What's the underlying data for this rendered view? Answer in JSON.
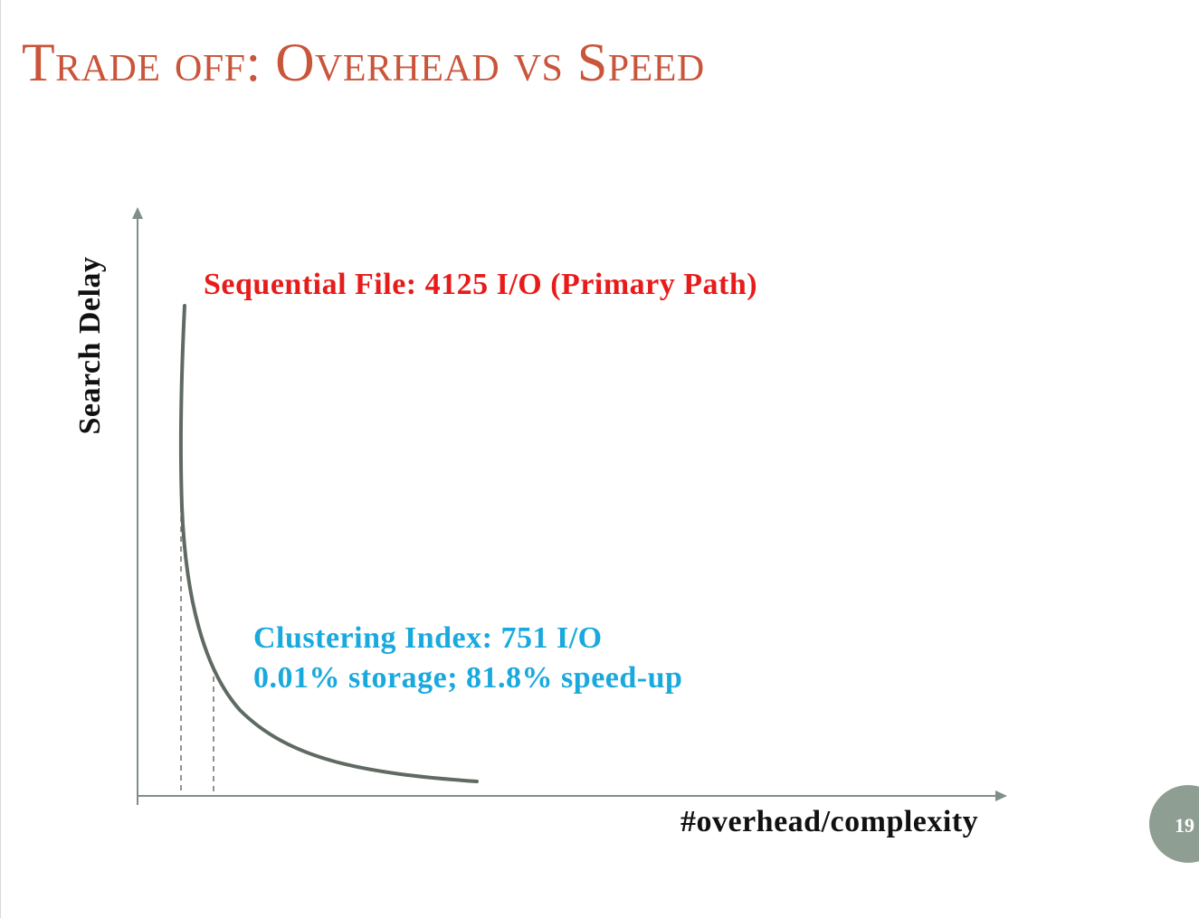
{
  "slide": {
    "title": "Trade off: Overhead vs Speed",
    "page_number": "19"
  },
  "diagram": {
    "y_axis_label": "Search Delay",
    "x_axis_label": "#overhead/complexity",
    "annotations": {
      "sequential": "Sequential File: 4125 I/O (Primary Path)",
      "clustering_line1": "Clustering Index: 751 I/O",
      "clustering_line2": "0.01% storage; 81.8% speed-up"
    }
  },
  "colors": {
    "title": "#c9553b",
    "sequential_text": "#e81b1b",
    "clustering_text": "#1aa9dd",
    "curve": "#5f6b62",
    "axis": "#7d8f86",
    "page_badge": "#8f9e92"
  }
}
